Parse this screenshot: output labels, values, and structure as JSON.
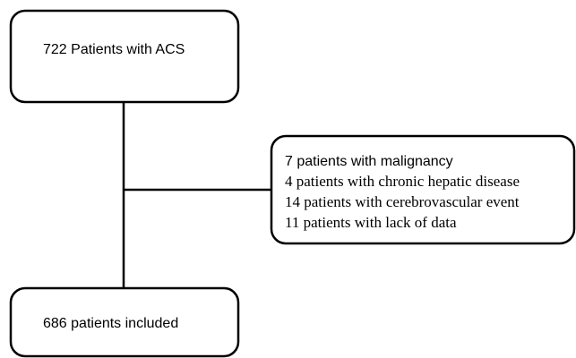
{
  "nodes": [
    {
      "label": "722 Patients with ACS"
    },
    {
      "lines": [
        "7 patients with malignancy",
        "4 patients with chronic hepatic disease",
        "14 patients with cerebrovascular event",
        "11 patients with lack of data"
      ]
    },
    {
      "label": "686 patients included"
    }
  ]
}
